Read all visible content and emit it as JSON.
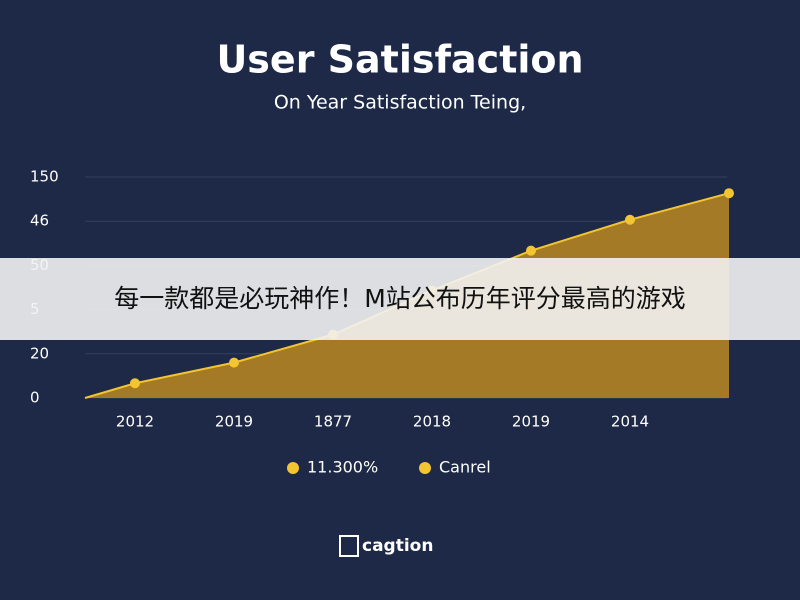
{
  "chart_data": {
    "type": "area",
    "title": "User Satisfaction",
    "subtitle": "On Year Satisfaction Teing,",
    "categories": [
      "2012",
      "2019",
      "1877",
      "2018",
      "2019",
      "2014",
      null
    ],
    "series": [
      {
        "name": "11.300%",
        "color": "#f2c531",
        "fill": "#a57a26",
        "values": [
          10,
          24,
          43,
          73,
          100,
          121,
          139
        ]
      }
    ],
    "legend": [
      "11.300%",
      "Canrel"
    ],
    "ylim": [
      0,
      150
    ],
    "yticks": [
      0,
      {
        "value": 30,
        "label": "20"
      },
      {
        "value": 60,
        "label": "5"
      },
      {
        "value": 90,
        "label": "50"
      },
      {
        "value": 120,
        "label": "46"
      },
      150
    ],
    "grid": true,
    "logo": "cagtion"
  },
  "banner": {
    "text": "每一款都是必玩神作！M站公布历年评分最高的游戏"
  }
}
